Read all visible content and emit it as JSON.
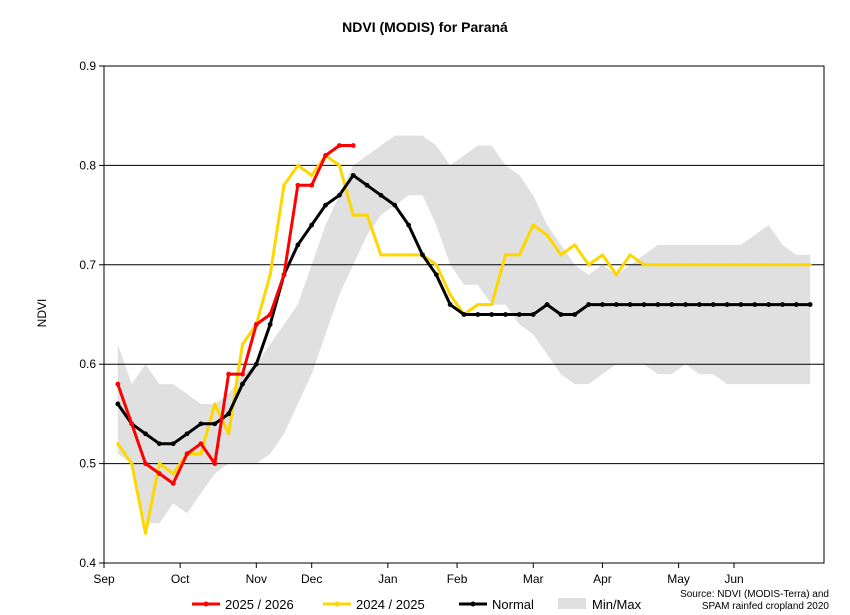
{
  "chart_data": {
    "type": "line",
    "title": "NDVI (MODIS) for Paraná",
    "ylabel": "NDVI",
    "ylim": [
      0.4,
      0.9
    ],
    "yticks": [
      0.4,
      0.5,
      0.6,
      0.7,
      0.8,
      0.9
    ],
    "ytick_labels": [
      "0.4",
      "0.5",
      "0.6",
      "0.7",
      "0.8",
      "0.9"
    ],
    "xlim": [
      0,
      52
    ],
    "month_labels": [
      {
        "label": "Sep",
        "x": 0
      },
      {
        "label": "Oct",
        "x": 5.5
      },
      {
        "label": "Nov",
        "x": 11
      },
      {
        "label": "Dec",
        "x": 15
      },
      {
        "label": "Jan",
        "x": 20.5
      },
      {
        "label": "Feb",
        "x": 25.5
      },
      {
        "label": "Mar",
        "x": 31
      },
      {
        "label": "Apr",
        "x": 36
      },
      {
        "label": "May",
        "x": 41.5
      },
      {
        "label": "Jun",
        "x": 45.5
      }
    ],
    "grid": "horizontal",
    "legend_position": "bottom",
    "series": [
      {
        "name": "Min/Max",
        "kind": "band",
        "color": "#e0e0e0",
        "x": [
          1,
          2,
          3,
          4,
          5,
          6,
          7,
          8,
          9,
          10,
          11,
          12,
          13,
          14,
          15,
          16,
          17,
          18,
          19,
          20,
          21,
          22,
          23,
          24,
          25,
          26,
          27,
          28,
          29,
          30,
          31,
          32,
          33,
          34,
          35,
          36,
          37,
          38,
          39,
          40,
          41,
          42,
          43,
          44,
          45,
          46,
          47,
          48,
          49,
          50,
          51
        ],
        "min": [
          0.51,
          0.5,
          0.44,
          0.44,
          0.46,
          0.45,
          0.47,
          0.49,
          0.5,
          0.5,
          0.5,
          0.51,
          0.53,
          0.56,
          0.59,
          0.63,
          0.67,
          0.7,
          0.73,
          0.75,
          0.76,
          0.77,
          0.77,
          0.74,
          0.7,
          0.68,
          0.68,
          0.66,
          0.66,
          0.64,
          0.63,
          0.61,
          0.59,
          0.58,
          0.58,
          0.59,
          0.6,
          0.6,
          0.6,
          0.59,
          0.59,
          0.6,
          0.59,
          0.59,
          0.58,
          0.58,
          0.58,
          0.58,
          0.58,
          0.58,
          0.58
        ],
        "max": [
          0.62,
          0.58,
          0.6,
          0.58,
          0.58,
          0.57,
          0.56,
          0.56,
          0.57,
          0.59,
          0.6,
          0.62,
          0.64,
          0.66,
          0.7,
          0.74,
          0.77,
          0.8,
          0.81,
          0.82,
          0.83,
          0.83,
          0.83,
          0.82,
          0.8,
          0.81,
          0.82,
          0.82,
          0.8,
          0.79,
          0.77,
          0.74,
          0.72,
          0.7,
          0.69,
          0.7,
          0.69,
          0.7,
          0.71,
          0.72,
          0.72,
          0.72,
          0.72,
          0.72,
          0.72,
          0.72,
          0.73,
          0.74,
          0.72,
          0.71,
          0.71
        ]
      },
      {
        "name": "2024 / 2025",
        "color": "#ffd700",
        "x": [
          1,
          2,
          3,
          4,
          5,
          6,
          7,
          8,
          9,
          10,
          11,
          12,
          13,
          14,
          15,
          16,
          17,
          18,
          19,
          20,
          21,
          22,
          23,
          24,
          25,
          26,
          27,
          28,
          29,
          30,
          31,
          32,
          33,
          34,
          35,
          36,
          37,
          38,
          39,
          40,
          41,
          42,
          43,
          44,
          45,
          46,
          47,
          48,
          49,
          50,
          51
        ],
        "y": [
          0.52,
          0.5,
          0.43,
          0.5,
          0.49,
          0.51,
          0.51,
          0.56,
          0.53,
          0.62,
          0.64,
          0.69,
          0.78,
          0.8,
          0.79,
          0.81,
          0.8,
          0.75,
          0.75,
          0.71,
          0.71,
          0.71,
          0.71,
          0.7,
          0.67,
          0.65,
          0.66,
          0.66,
          0.71,
          0.71,
          0.74,
          0.73,
          0.71,
          0.72,
          0.7,
          0.71,
          0.69,
          0.71,
          0.7,
          0.7,
          0.7,
          0.7,
          0.7,
          0.7,
          0.7,
          0.7,
          0.7,
          0.7,
          0.7,
          0.7,
          0.7
        ]
      },
      {
        "name": "Normal",
        "color": "#000000",
        "x": [
          1,
          2,
          3,
          4,
          5,
          6,
          7,
          8,
          9,
          10,
          11,
          12,
          13,
          14,
          15,
          16,
          17,
          18,
          19,
          20,
          21,
          22,
          23,
          24,
          25,
          26,
          27,
          28,
          29,
          30,
          31,
          32,
          33,
          34,
          35,
          36,
          37,
          38,
          39,
          40,
          41,
          42,
          43,
          44,
          45,
          46,
          47,
          48,
          49,
          50,
          51
        ],
        "y": [
          0.56,
          0.54,
          0.53,
          0.52,
          0.52,
          0.53,
          0.54,
          0.54,
          0.55,
          0.58,
          0.6,
          0.64,
          0.69,
          0.72,
          0.74,
          0.76,
          0.77,
          0.79,
          0.78,
          0.77,
          0.76,
          0.74,
          0.71,
          0.69,
          0.66,
          0.65,
          0.65,
          0.65,
          0.65,
          0.65,
          0.65,
          0.66,
          0.65,
          0.65,
          0.66,
          0.66,
          0.66,
          0.66,
          0.66,
          0.66,
          0.66,
          0.66,
          0.66,
          0.66,
          0.66,
          0.66,
          0.66,
          0.66,
          0.66,
          0.66,
          0.66
        ]
      },
      {
        "name": "2025 / 2026",
        "color": "#ff0000",
        "x": [
          1,
          2,
          3,
          4,
          5,
          6,
          7,
          8,
          9,
          10,
          11,
          12,
          13,
          14,
          15,
          16,
          17,
          18
        ],
        "y": [
          0.58,
          0.54,
          0.5,
          0.49,
          0.48,
          0.51,
          0.52,
          0.5,
          0.59,
          0.59,
          0.64,
          0.65,
          0.69,
          0.78,
          0.78,
          0.81,
          0.82,
          0.82
        ]
      }
    ],
    "legend": [
      {
        "name": "2025 / 2026",
        "color": "#ff0000",
        "kind": "line"
      },
      {
        "name": "2024 / 2025",
        "color": "#ffd700",
        "kind": "line"
      },
      {
        "name": "Normal",
        "color": "#000000",
        "kind": "line"
      },
      {
        "name": "Min/Max",
        "color": "#e0e0e0",
        "kind": "band"
      }
    ],
    "source_lines": [
      "Source: NDVI (MODIS-Terra) and",
      "SPAM rainfed cropland 2020"
    ]
  }
}
